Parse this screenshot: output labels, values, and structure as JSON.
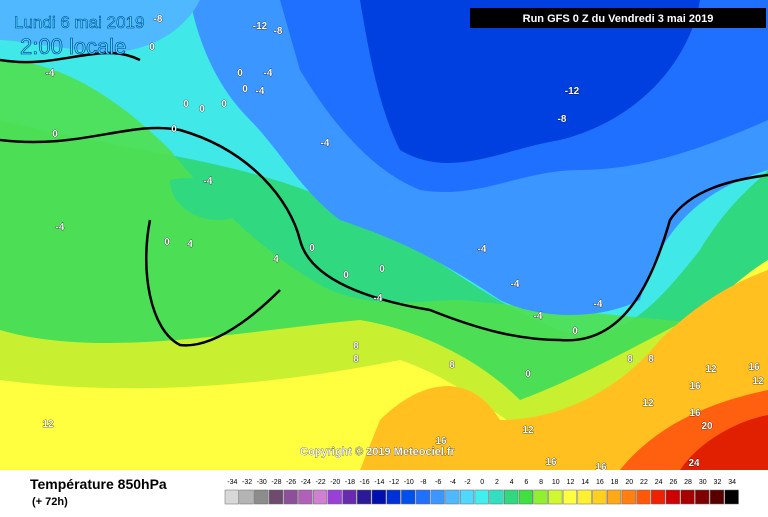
{
  "header": {
    "date": "Lundi 6 mai 2019",
    "time": "2:00 locale",
    "run": "Run GFS 0 Z du Vendredi 3 mai 2019"
  },
  "footer": {
    "title": "Température 850hPa",
    "lead": "(+ 72h)",
    "copyright": "Copyright © 2019 Meteociel.fr"
  },
  "legend": {
    "items": [
      {
        "label": -34,
        "color": "#d8d8d8"
      },
      {
        "label": -32,
        "color": "#b4b4b4"
      },
      {
        "label": -30,
        "color": "#8c8c8c"
      },
      {
        "label": -28,
        "color": "#6e4a6e"
      },
      {
        "label": -26,
        "color": "#8e4f9a"
      },
      {
        "label": -24,
        "color": "#b060b8"
      },
      {
        "label": -22,
        "color": "#d080d0"
      },
      {
        "label": -20,
        "color": "#9a40d8"
      },
      {
        "label": -18,
        "color": "#6a2ab0"
      },
      {
        "label": -16,
        "color": "#2a1a9a"
      },
      {
        "label": -14,
        "color": "#0010b0"
      },
      {
        "label": -12,
        "color": "#0030d8"
      },
      {
        "label": -10,
        "color": "#0050f0"
      },
      {
        "label": -8,
        "color": "#2070ff"
      },
      {
        "label": -6,
        "color": "#3c96ff"
      },
      {
        "label": -4,
        "color": "#50b8ff"
      },
      {
        "label": -2,
        "color": "#50d8ff"
      },
      {
        "label": 0,
        "color": "#40f0f0"
      },
      {
        "label": 2,
        "color": "#30e0c0"
      },
      {
        "label": 4,
        "color": "#30d880"
      },
      {
        "label": 6,
        "color": "#40e040"
      },
      {
        "label": 8,
        "color": "#90f030"
      },
      {
        "label": 10,
        "color": "#d0f830"
      },
      {
        "label": 12,
        "color": "#ffff40"
      },
      {
        "label": 14,
        "color": "#fff030"
      },
      {
        "label": 16,
        "color": "#ffd020"
      },
      {
        "label": 18,
        "color": "#ffa818"
      },
      {
        "label": 20,
        "color": "#ff8010"
      },
      {
        "label": 22,
        "color": "#ff5808"
      },
      {
        "label": 24,
        "color": "#f02000"
      },
      {
        "label": 26,
        "color": "#d00000"
      },
      {
        "label": 28,
        "color": "#a80000"
      },
      {
        "label": 30,
        "color": "#800000"
      },
      {
        "label": 32,
        "color": "#580000"
      },
      {
        "label": 34,
        "color": "#000000"
      }
    ]
  },
  "map": {
    "labels": [
      -8,
      0,
      -12,
      -8,
      -4,
      0,
      -4,
      0,
      -4,
      0,
      0,
      0,
      0,
      0,
      -4,
      -12,
      -8,
      -4,
      -4,
      0,
      4,
      4,
      0,
      0,
      0,
      -4,
      -4,
      -4,
      -4,
      -4,
      0,
      8,
      8,
      8,
      0,
      8,
      8,
      12,
      16,
      12,
      12,
      16,
      16,
      12,
      12,
      16,
      16,
      16,
      20,
      24
    ]
  }
}
